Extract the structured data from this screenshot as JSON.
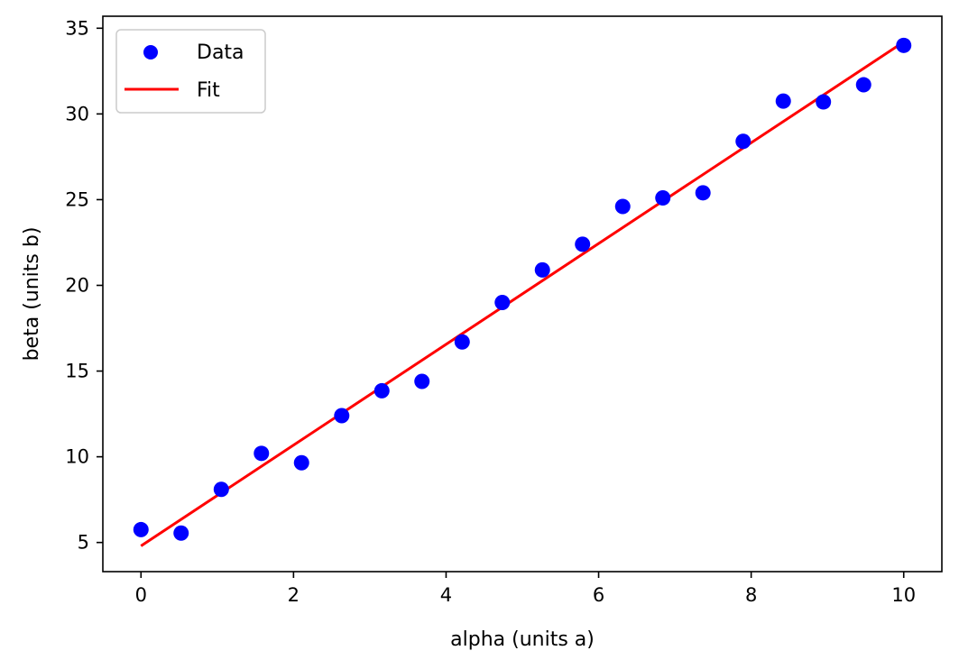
{
  "chart_data": {
    "type": "scatter",
    "title": "",
    "xlabel": "alpha (units a)",
    "ylabel": "beta (units b)",
    "xlim": [
      -0.5,
      10.5
    ],
    "ylim": [
      3.3,
      35.7
    ],
    "xticks": [
      0,
      2,
      4,
      6,
      8,
      10
    ],
    "yticks": [
      5,
      10,
      15,
      20,
      25,
      30,
      35
    ],
    "grid": false,
    "legend": {
      "placement": "top-left",
      "entries": [
        "Data",
        "Fit"
      ]
    },
    "series": [
      {
        "name": "Data",
        "kind": "scatter",
        "color": "#0000ff",
        "x": [
          0.0,
          0.526,
          1.053,
          1.579,
          2.105,
          2.632,
          3.158,
          3.684,
          4.211,
          4.737,
          5.263,
          5.789,
          6.316,
          6.842,
          7.368,
          7.895,
          8.421,
          8.947,
          9.474,
          10.0
        ],
        "y": [
          5.75,
          5.55,
          8.1,
          10.2,
          9.65,
          12.4,
          13.85,
          14.4,
          16.7,
          19.0,
          20.9,
          22.4,
          24.6,
          25.1,
          25.4,
          28.4,
          30.75,
          30.7,
          31.7,
          34.0
        ]
      },
      {
        "name": "Fit",
        "kind": "line",
        "color": "#ff0000",
        "x": [
          0,
          10
        ],
        "y": [
          4.8,
          34.2
        ]
      }
    ]
  }
}
